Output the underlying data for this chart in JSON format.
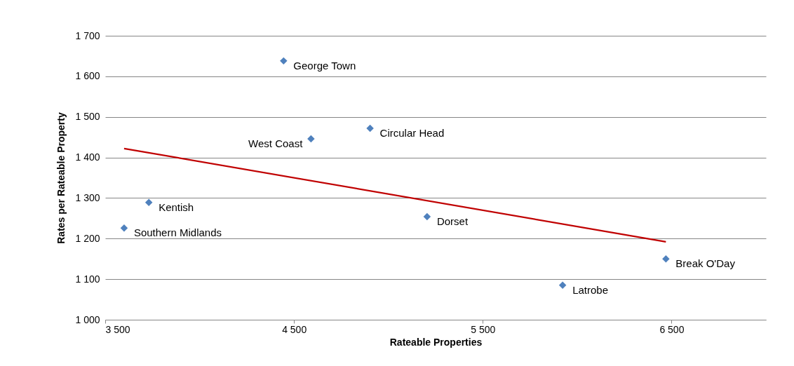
{
  "chart_data": {
    "type": "scatter",
    "xlabel": "Rateable Properties",
    "ylabel": "Rates per Rateable Property",
    "xlim": [
      3500,
      7000
    ],
    "xticks": [
      {
        "value": 3500,
        "label": "3 500"
      },
      {
        "value": 4500,
        "label": "4 500"
      },
      {
        "value": 5500,
        "label": "5 500"
      },
      {
        "value": 6500,
        "label": "6 500"
      }
    ],
    "ylim": [
      1000,
      1700
    ],
    "yticks": [
      {
        "value": 1000,
        "label": "1 000"
      },
      {
        "value": 1100,
        "label": "1 100"
      },
      {
        "value": 1200,
        "label": "1 200"
      },
      {
        "value": 1300,
        "label": "1 300"
      },
      {
        "value": 1400,
        "label": "1 400"
      },
      {
        "value": 1500,
        "label": "1 500"
      },
      {
        "value": 1600,
        "label": "1 600"
      },
      {
        "value": 1700,
        "label": "1 700"
      }
    ],
    "grid": "y",
    "marker": "diamond",
    "series": [
      {
        "color": "#4f81bd",
        "x": [
          4445,
          4590,
          4903,
          3731,
          3600,
          5205,
          5923,
          6470
        ],
        "values": [
          1638,
          1446,
          1472,
          1289,
          1226,
          1254,
          1085,
          1150
        ]
      },
      {
        "type": "line",
        "marker": "none",
        "color": "#c00000",
        "x": [
          3600,
          6470
        ],
        "values": [
          1422,
          1192
        ]
      }
    ],
    "annotations": [
      {
        "text": "George Town",
        "x": 4445,
        "y": 1638
      },
      {
        "text": "West Coast",
        "x": 4590,
        "y": 1446
      },
      {
        "text": "Circular Head",
        "x": 4903,
        "y": 1472
      },
      {
        "text": "Kentish",
        "x": 3731,
        "y": 1289
      },
      {
        "text": "Southern Midlands",
        "x": 3600,
        "y": 1226
      },
      {
        "text": "Dorset",
        "x": 5205,
        "y": 1254
      },
      {
        "text": "Latrobe",
        "x": 5923,
        "y": 1085
      },
      {
        "text": "Break O'Day",
        "x": 6470,
        "y": 1150
      }
    ]
  }
}
